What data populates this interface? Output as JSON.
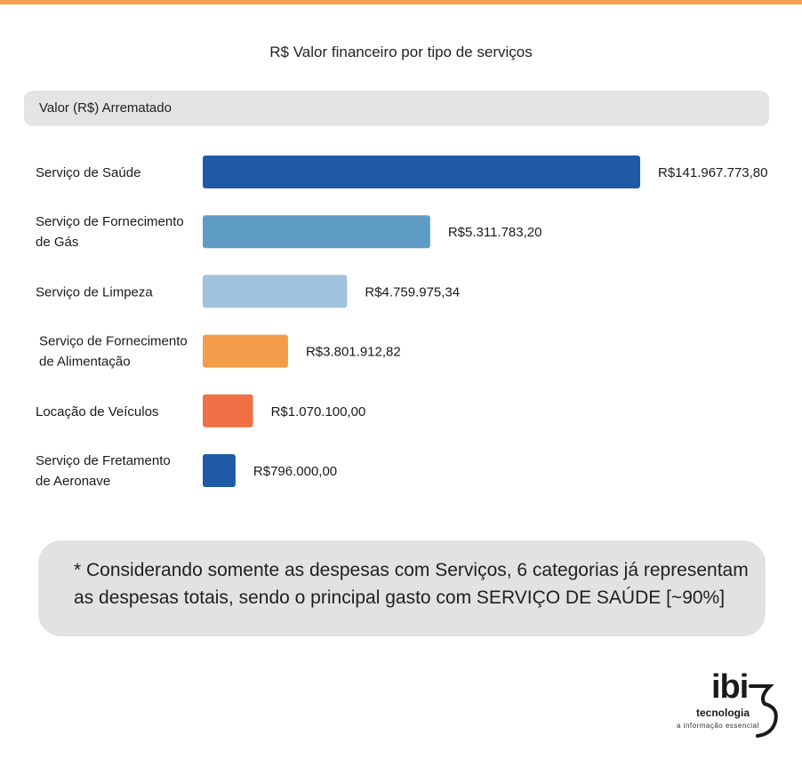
{
  "chart_data": {
    "type": "bar",
    "orientation": "horizontal",
    "title": "R$ Valor financeiro por tipo de serviços",
    "section_label": "Valor (R$) Arrematado",
    "categories": [
      "Serviço de Saúde",
      "Serviço de Fornecimento de Gás",
      "Serviço de Limpeza",
      "Serviço de Fornecimento de Alimentação",
      "Locação de Veículos",
      "Serviço de Fretamento de Aeronave"
    ],
    "category_lines": [
      [
        "Serviço de Saúde"
      ],
      [
        "Serviço de Fornecimento",
        "de Gás"
      ],
      [
        "Serviço de Limpeza"
      ],
      [
        "Serviço de Fornecimento",
        "de Alimentação"
      ],
      [
        "Locação de Veículos"
      ],
      [
        "Serviço de Fretamento",
        "de Aeronave"
      ]
    ],
    "values": [
      141967773.8,
      5311783.2,
      4759975.34,
      3801912.82,
      1070100.0,
      796000.0
    ],
    "value_labels": [
      "R$141.967.773,80",
      "R$5.311.783,20",
      "R$4.759.975,34",
      "R$3.801.912,82",
      "R$1.070.100,00",
      "R$796.000,00"
    ],
    "bar_lengths_relative": [
      1.0,
      0.52,
      0.33,
      0.195,
      0.115,
      0.075
    ],
    "colors": [
      "#1f5aa6",
      "#5f9cc5",
      "#9fc3dc",
      "#f39c4a",
      "#ee7044",
      "#1f5aa6"
    ],
    "axis_scale": "non-linear (bar lengths not proportional to values)",
    "grid": false,
    "legend": "none"
  },
  "note": "* Considerando somente as despesas com Serviços, 6 categorias já representam as despesas totais, sendo o principal gasto com SERVIÇO DE SAÚDE [~90%]",
  "logo": {
    "brand": "ibi",
    "tagline": "tecnologia",
    "subtagline": "a informação essencial"
  }
}
